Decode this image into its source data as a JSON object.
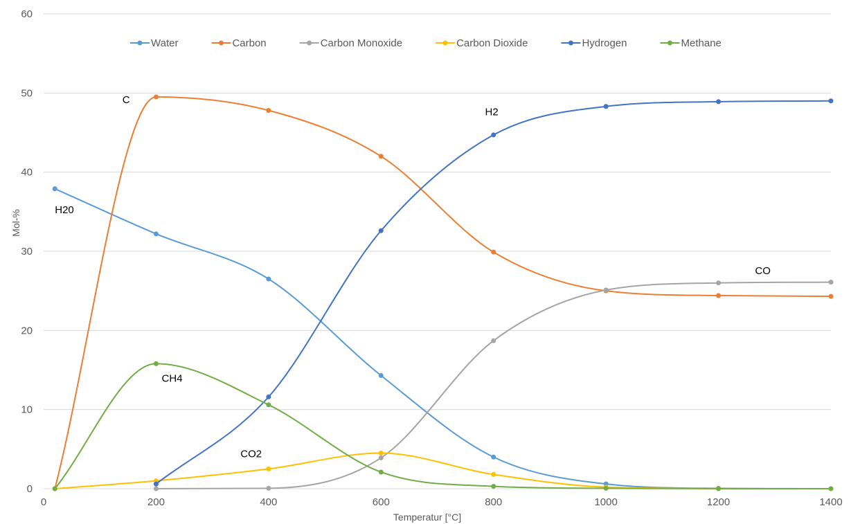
{
  "chart_data": {
    "type": "line",
    "xlabel": "Temperatur [°C]",
    "ylabel": "Mol-%",
    "xlim": [
      0,
      1400
    ],
    "ylim": [
      0,
      60
    ],
    "x_ticks": [
      0,
      200,
      400,
      600,
      800,
      1000,
      1200,
      1400
    ],
    "y_ticks": [
      0,
      10,
      20,
      30,
      40,
      50,
      60
    ],
    "grid": "horizontal",
    "legend_position": "top",
    "smooth": true,
    "series": [
      {
        "name": "Water",
        "color": "#5b9bd5",
        "points": [
          [
            20,
            37.9
          ],
          [
            200,
            32.2
          ],
          [
            400,
            26.5
          ],
          [
            600,
            14.3
          ],
          [
            800,
            4.0
          ],
          [
            1000,
            0.6
          ],
          [
            1200,
            0.05
          ],
          [
            1400,
            0.0
          ]
        ]
      },
      {
        "name": "Carbon",
        "color": "#ed7d31",
        "points": [
          [
            20,
            0.0
          ],
          [
            200,
            49.5
          ],
          [
            400,
            47.8
          ],
          [
            600,
            42.0
          ],
          [
            800,
            29.9
          ],
          [
            1000,
            25.0
          ],
          [
            1200,
            24.4
          ],
          [
            1400,
            24.3
          ]
        ]
      },
      {
        "name": "Carbon Monoxide",
        "color": "#a5a5a5",
        "points": [
          [
            200,
            0.0
          ],
          [
            400,
            0.05
          ],
          [
            600,
            3.9
          ],
          [
            800,
            18.7
          ],
          [
            1000,
            25.1
          ],
          [
            1200,
            26.0
          ],
          [
            1400,
            26.1
          ]
        ]
      },
      {
        "name": "Carbon Dioxide",
        "color": "#ffc000",
        "points": [
          [
            20,
            0.0
          ],
          [
            200,
            1.0
          ],
          [
            400,
            2.5
          ],
          [
            600,
            4.5
          ],
          [
            800,
            1.8
          ],
          [
            1000,
            0.2
          ],
          [
            1200,
            0.02
          ],
          [
            1400,
            0.0
          ]
        ]
      },
      {
        "name": "Hydrogen",
        "color": "#4472c4",
        "points": [
          [
            200,
            0.6
          ],
          [
            400,
            11.6
          ],
          [
            600,
            32.6
          ],
          [
            800,
            44.7
          ],
          [
            1000,
            48.3
          ],
          [
            1200,
            48.9
          ],
          [
            1400,
            49.0
          ]
        ]
      },
      {
        "name": "Methane",
        "color": "#70ad47",
        "points": [
          [
            20,
            0.0
          ],
          [
            200,
            15.8
          ],
          [
            400,
            10.6
          ],
          [
            600,
            2.1
          ],
          [
            800,
            0.3
          ],
          [
            1000,
            0.05
          ],
          [
            1200,
            0.0
          ],
          [
            1400,
            0.0
          ]
        ]
      }
    ],
    "annotations": [
      {
        "text": "H20",
        "x": 20,
        "y": 34.8
      },
      {
        "text": "C",
        "x": 140,
        "y": 48.7
      },
      {
        "text": "CH4",
        "x": 210,
        "y": 13.5
      },
      {
        "text": "CO2",
        "x": 350,
        "y": 4.0
      },
      {
        "text": "H2",
        "x": 785,
        "y": 47.2
      },
      {
        "text": "CO",
        "x": 1265,
        "y": 27.1
      }
    ]
  }
}
